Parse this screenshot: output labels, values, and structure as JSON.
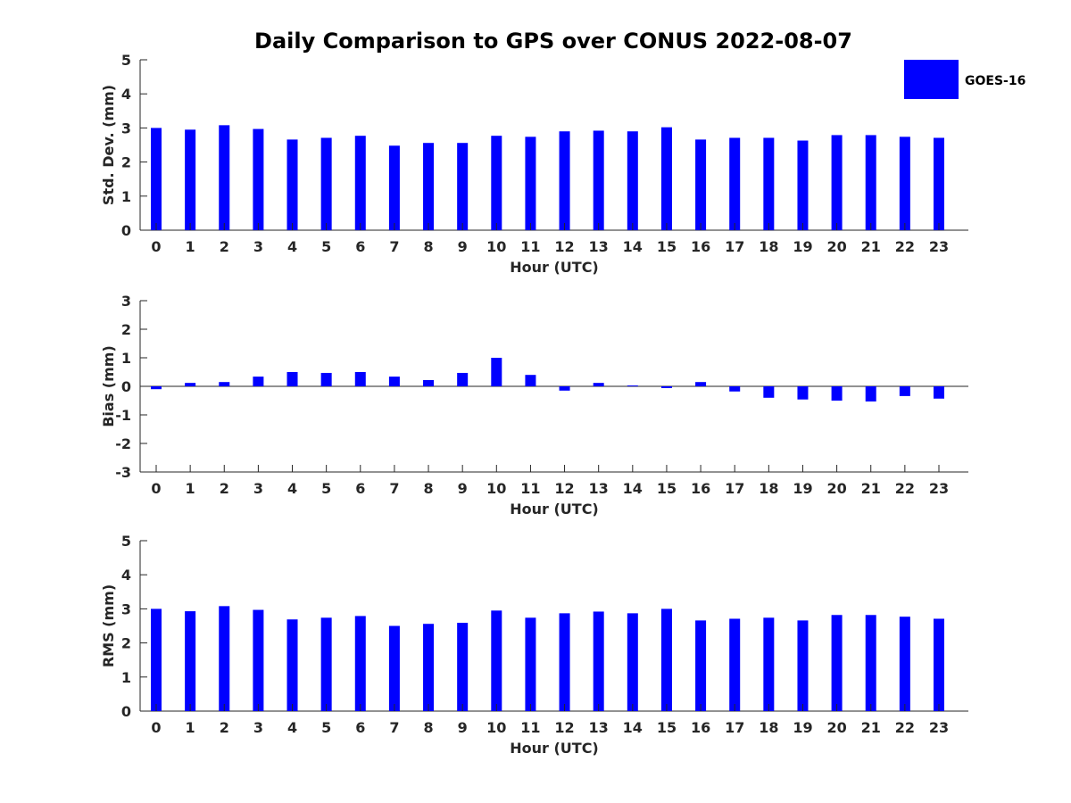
{
  "chart_data": {
    "type": "bar",
    "title": "Daily Comparison to GPS over CONUS 2022-08-07",
    "legend": {
      "label": "GOES-16",
      "color": "#0000ff",
      "placement": "top-right"
    },
    "categories": [
      "0",
      "1",
      "2",
      "3",
      "4",
      "5",
      "6",
      "7",
      "8",
      "9",
      "10",
      "11",
      "12",
      "13",
      "14",
      "15",
      "16",
      "17",
      "18",
      "19",
      "20",
      "21",
      "22",
      "23"
    ],
    "panels": [
      {
        "ylabel": "Std. Dev. (mm)",
        "xlabel": "Hour (UTC)",
        "ylim": [
          0,
          5
        ],
        "yticks": [
          "0",
          "1",
          "2",
          "3",
          "4",
          "5"
        ],
        "values": [
          3.0,
          2.95,
          3.08,
          2.97,
          2.66,
          2.71,
          2.77,
          2.48,
          2.56,
          2.56,
          2.77,
          2.74,
          2.9,
          2.92,
          2.9,
          3.02,
          2.66,
          2.71,
          2.71,
          2.63,
          2.79,
          2.79,
          2.74,
          2.71
        ]
      },
      {
        "ylabel": "Bias (mm)",
        "xlabel": "Hour (UTC)",
        "ylim": [
          -3,
          3
        ],
        "yticks": [
          "-3",
          "-2",
          "-1",
          "0",
          "1",
          "2",
          "3"
        ],
        "values": [
          -0.1,
          0.12,
          0.15,
          0.34,
          0.5,
          0.47,
          0.5,
          0.34,
          0.22,
          0.47,
          1.0,
          0.4,
          -0.15,
          0.12,
          0.03,
          -0.06,
          0.15,
          -0.18,
          -0.4,
          -0.46,
          -0.5,
          -0.53,
          -0.34,
          -0.43
        ]
      },
      {
        "ylabel": "RMS (mm)",
        "xlabel": "Hour (UTC)",
        "ylim": [
          0,
          5
        ],
        "yticks": [
          "0",
          "1",
          "2",
          "3",
          "4",
          "5"
        ],
        "values": [
          3.0,
          2.93,
          3.08,
          2.97,
          2.69,
          2.74,
          2.79,
          2.5,
          2.56,
          2.59,
          2.95,
          2.74,
          2.87,
          2.92,
          2.87,
          3.0,
          2.66,
          2.71,
          2.74,
          2.66,
          2.82,
          2.82,
          2.77,
          2.71
        ]
      }
    ]
  }
}
